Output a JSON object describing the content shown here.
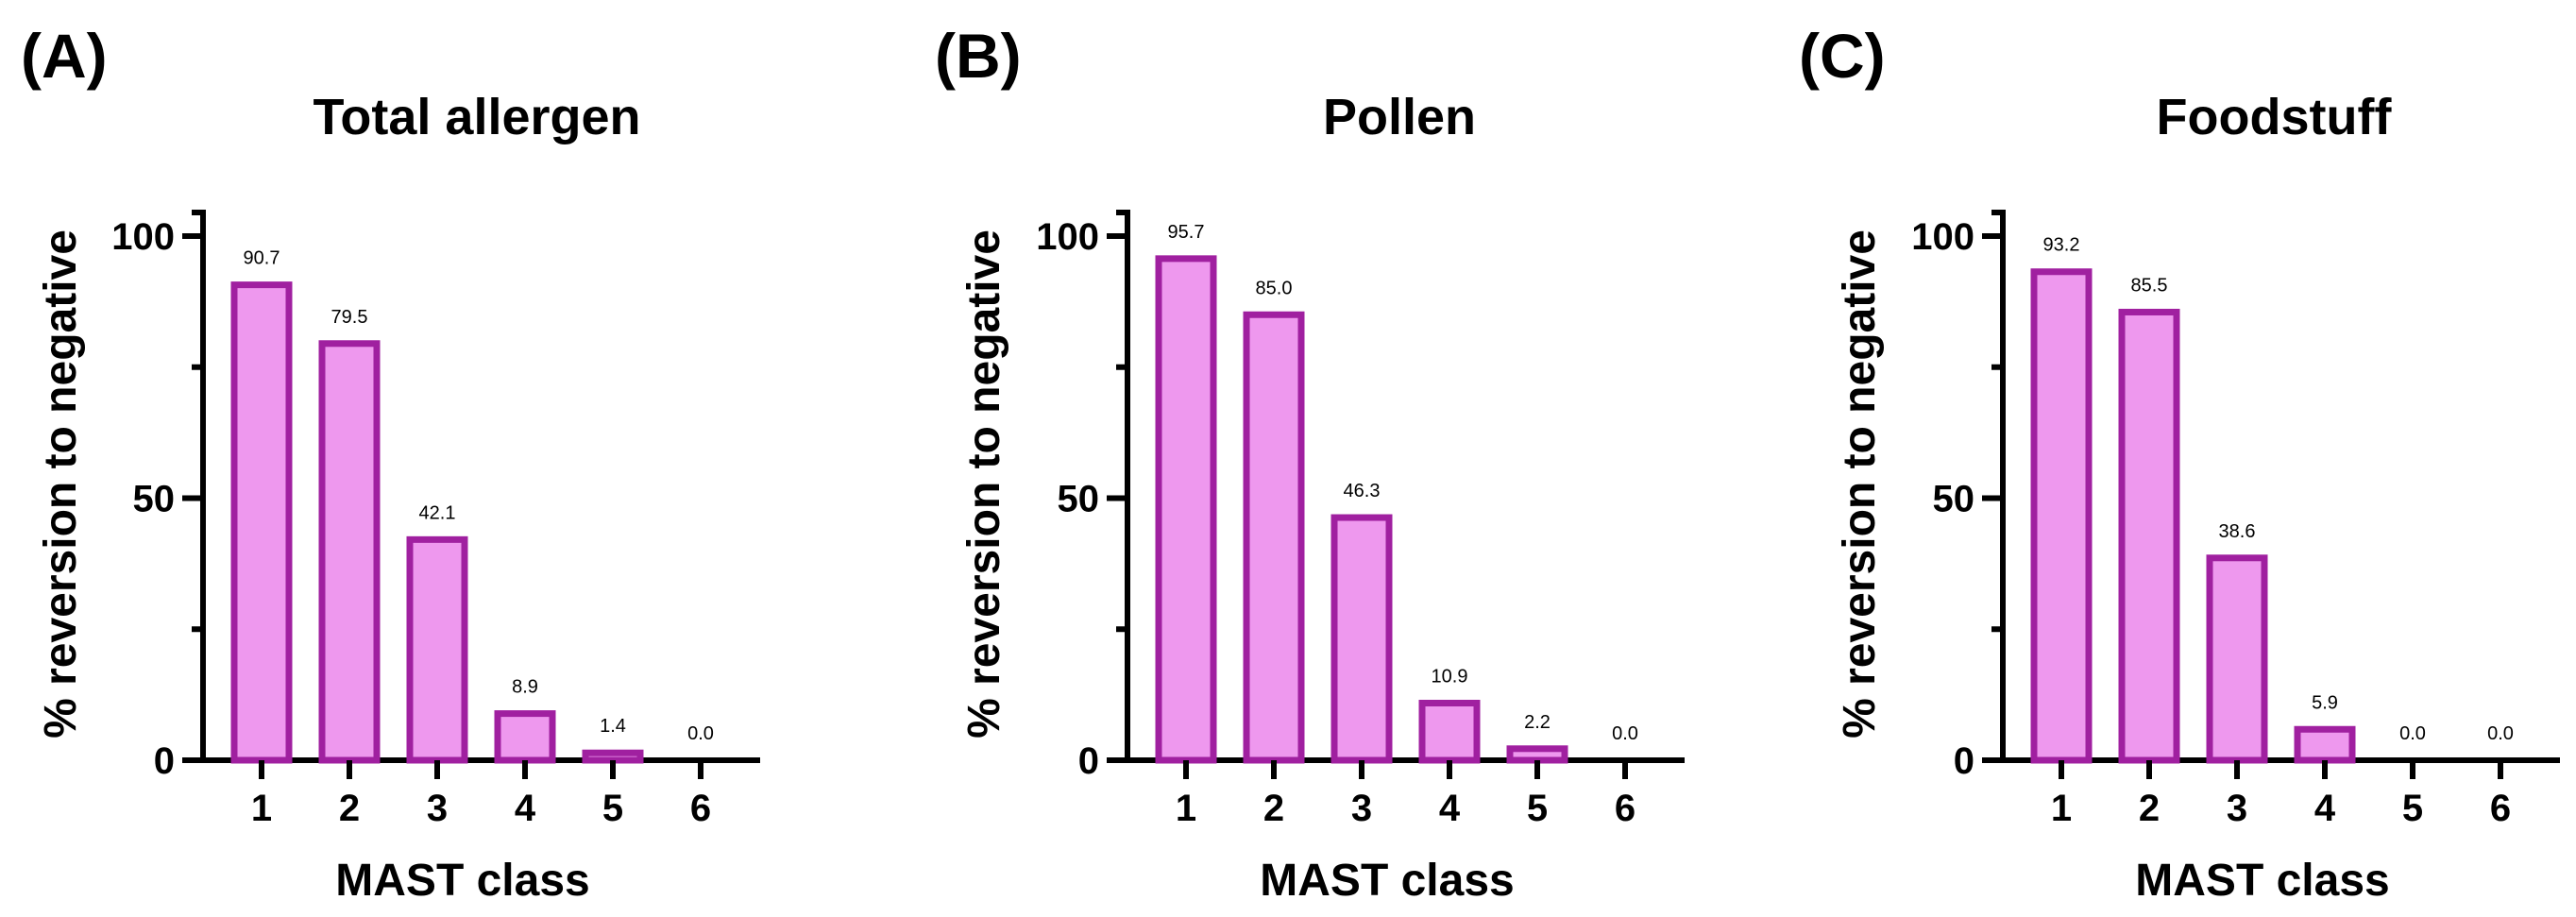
{
  "colors": {
    "bar_fill": "#ee98ee",
    "bar_stroke": "#a020a0",
    "axis": "#000000"
  },
  "chart_data": [
    {
      "type": "bar",
      "panel_label": "(A)",
      "title": "Total allergen",
      "xlabel": "MAST class",
      "ylabel": "% reversion to negative",
      "categories": [
        "1",
        "2",
        "3",
        "4",
        "5",
        "6"
      ],
      "values": [
        90.7,
        79.5,
        42.1,
        8.9,
        1.4,
        0.0
      ],
      "data_labels": [
        "90.7",
        "79.5",
        "42.1",
        "8.9",
        "1.4",
        "0.0"
      ],
      "ylim": [
        0,
        100
      ],
      "yticks": [
        0,
        50,
        100
      ],
      "ytick_labels": [
        "0",
        "50",
        "100"
      ],
      "grid": false
    },
    {
      "type": "bar",
      "panel_label": "(B)",
      "title": "Pollen",
      "xlabel": "MAST class",
      "ylabel": "% reversion to negative",
      "categories": [
        "1",
        "2",
        "3",
        "4",
        "5",
        "6"
      ],
      "values": [
        95.7,
        85.0,
        46.3,
        10.9,
        2.2,
        0.0
      ],
      "data_labels": [
        "95.7",
        "85.0",
        "46.3",
        "10.9",
        "2.2",
        "0.0"
      ],
      "ylim": [
        0,
        100
      ],
      "yticks": [
        0,
        50,
        100
      ],
      "ytick_labels": [
        "0",
        "50",
        "100"
      ],
      "grid": false
    },
    {
      "type": "bar",
      "panel_label": "(C)",
      "title": "Foodstuff",
      "xlabel": "MAST class",
      "ylabel": "% reversion to negative",
      "categories": [
        "1",
        "2",
        "3",
        "4",
        "5",
        "6"
      ],
      "values": [
        93.2,
        85.5,
        38.6,
        5.9,
        0.0,
        0.0
      ],
      "data_labels": [
        "93.2",
        "85.5",
        "38.6",
        "5.9",
        "0.0",
        "0.0"
      ],
      "ylim": [
        0,
        100
      ],
      "yticks": [
        0,
        50,
        100
      ],
      "ytick_labels": [
        "0",
        "50",
        "100"
      ],
      "grid": false
    }
  ]
}
